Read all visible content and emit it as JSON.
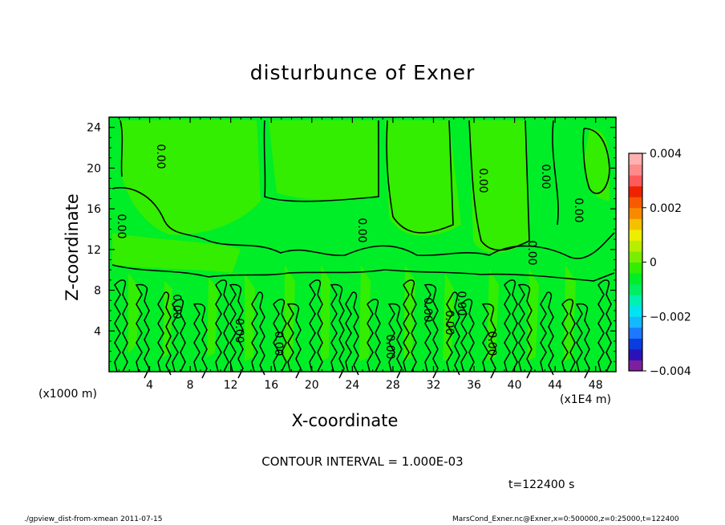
{
  "chart_data": {
    "type": "heatmap",
    "title": "disturbunce of Exner",
    "xlabel": "X-coordinate",
    "ylabel": "Z-coordinate",
    "x_unit_left": "(x1000 m)",
    "x_unit_right": "(x1E4 m)",
    "xlim": [
      0,
      50
    ],
    "ylim": [
      0,
      25
    ],
    "x_ticks": [
      "4",
      "8",
      "12",
      "16",
      "20",
      "24",
      "28",
      "32",
      "36",
      "40",
      "44",
      "48"
    ],
    "y_ticks": [
      "4",
      "8",
      "12",
      "16",
      "20",
      "24"
    ],
    "x_tick_values": [
      4,
      8,
      12,
      16,
      20,
      24,
      28,
      32,
      36,
      40,
      44,
      48
    ],
    "y_tick_values": [
      4,
      8,
      12,
      16,
      20,
      24
    ],
    "colorbar": {
      "labels": [
        "0.004",
        "0.002",
        "0",
        "−0.002",
        "−0.004"
      ],
      "label_values": [
        0.004,
        0.002,
        0,
        -0.002,
        -0.004
      ],
      "range": [
        -0.004,
        0.004
      ],
      "colors": [
        "#7f1f9f",
        "#2a12b8",
        "#0b3ce0",
        "#1e78ff",
        "#14b8ff",
        "#00e4f2",
        "#00f0b0",
        "#00ee60",
        "#00ee28",
        "#33ee00",
        "#7aee00",
        "#b8ee00",
        "#eeee00",
        "#f5c000",
        "#f88a00",
        "#f85a00",
        "#ee2200",
        "#ff5a5a",
        "#ff8a8a",
        "#ffb0b0"
      ]
    },
    "contour_labels": [
      "0.00"
    ],
    "contour_interval": "CONTOUR INTERVAL = 1.000E-03",
    "time": "t=122400 s"
  },
  "footer": {
    "left": "./gpview_dist-from-xmean  2011-07-15",
    "right": "MarsCond_Exner.nc@Exner,x=0:500000,z=0:25000,t=122400"
  }
}
